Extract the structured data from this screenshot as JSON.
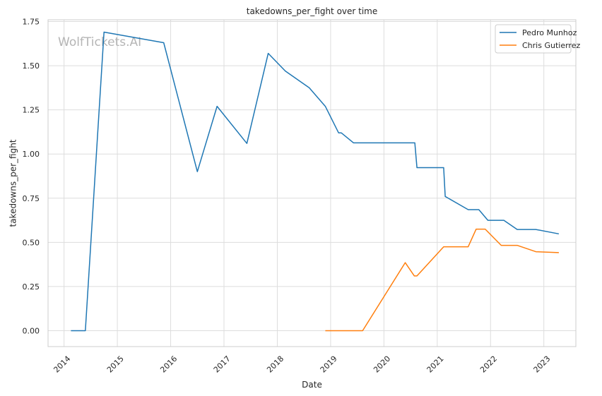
{
  "chart_data": {
    "type": "line",
    "title": "takedowns_per_fight over time",
    "xlabel": "Date",
    "ylabel": "takedowns_per_fight",
    "watermark": "WolfTickets.AI",
    "xlim": [
      2013.7,
      2023.6
    ],
    "ylim": [
      -0.09,
      1.76
    ],
    "x_ticks": [
      2014,
      2015,
      2016,
      2017,
      2018,
      2019,
      2020,
      2021,
      2022,
      2023
    ],
    "y_ticks": [
      0.0,
      0.25,
      0.5,
      0.75,
      1.0,
      1.25,
      1.5,
      1.75
    ],
    "y_tick_labels": [
      "0.00",
      "0.25",
      "0.50",
      "0.75",
      "1.00",
      "1.25",
      "1.50",
      "1.75"
    ],
    "grid": true,
    "legend_position": "top-right",
    "series": [
      {
        "name": "Pedro Munhoz",
        "color": "#1f77b4",
        "x": [
          2014.13,
          2014.4,
          2014.75,
          2015.87,
          2016.5,
          2016.87,
          2017.43,
          2017.83,
          2018.15,
          2018.6,
          2018.9,
          2019.15,
          2019.2,
          2019.43,
          2020.25,
          2020.58,
          2020.62,
          2021.12,
          2021.15,
          2021.58,
          2021.78,
          2021.95,
          2022.25,
          2022.5,
          2022.85,
          2023.28
        ],
        "y": [
          0.0,
          0.0,
          1.69,
          1.63,
          0.9,
          1.27,
          1.06,
          1.57,
          1.47,
          1.375,
          1.27,
          1.12,
          1.12,
          1.063,
          1.063,
          1.063,
          0.923,
          0.923,
          0.76,
          0.685,
          0.685,
          0.625,
          0.625,
          0.573,
          0.573,
          0.548
        ]
      },
      {
        "name": "Chris Gutierrez",
        "color": "#ff7f0e",
        "x": [
          2018.9,
          2019.55,
          2019.6,
          2020.4,
          2020.57,
          2020.62,
          2021.12,
          2021.58,
          2021.73,
          2021.9,
          2022.2,
          2022.5,
          2022.85,
          2023.28
        ],
        "y": [
          0.0,
          0.0,
          0.0,
          0.385,
          0.31,
          0.31,
          0.475,
          0.475,
          0.575,
          0.575,
          0.483,
          0.483,
          0.447,
          0.442
        ]
      }
    ]
  }
}
